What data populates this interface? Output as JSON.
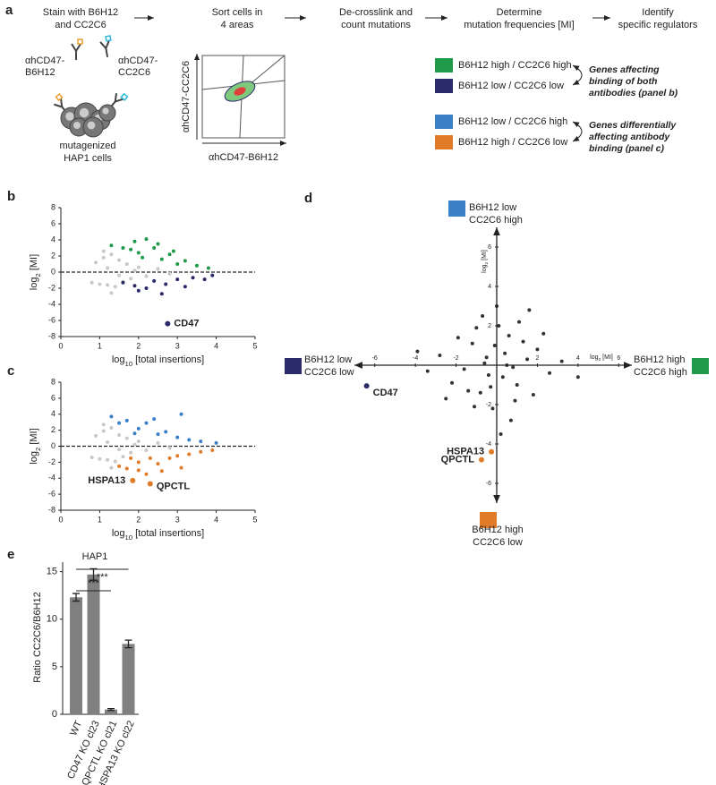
{
  "panel_a": {
    "label": "a",
    "steps": [
      [
        "Stain with B6H12",
        "and CC2C6"
      ],
      [
        "Sort cells in",
        "4 areas"
      ],
      [
        "De-crosslink and",
        "count mutations"
      ],
      [
        "Determine",
        "mutation frequencies [MI]"
      ],
      [
        "Identify",
        "specific regulators"
      ]
    ],
    "antibody_1": [
      "αhCD47-",
      "B6H12"
    ],
    "antibody_2": [
      "αhCD47-",
      "CC2C6"
    ],
    "cells": [
      "mutagenized",
      "HAP1 cells"
    ],
    "facs_ylabel": "αhCD47-CC2C6",
    "facs_xlabel": "αhCD47-B6H12",
    "legend": [
      {
        "name": "B6H12 high / CC2C6 high",
        "color": "#1f9a4a"
      },
      {
        "name": "B6H12 low / CC2C6 low",
        "color": "#2b2a6b"
      },
      {
        "name": "B6H12 low / CC2C6 high",
        "color": "#3b7fc8"
      },
      {
        "name": "B6H12 high / CC2C6 low",
        "color": "#e07b28"
      }
    ],
    "notes": [
      [
        "Genes affecting",
        "binding of both",
        "antibodies (panel b)"
      ],
      [
        "Genes differentially",
        "affecting antibody",
        "binding (panel c)"
      ]
    ]
  },
  "chart_data": [
    {
      "type": "scatter",
      "panel": "b",
      "xlim": [
        0,
        5
      ],
      "ylim": [
        -8,
        8
      ],
      "xticks": [
        0,
        1,
        2,
        3,
        4,
        5
      ],
      "yticks": [
        -8,
        -6,
        -4,
        -2,
        0,
        2,
        4,
        6,
        8
      ],
      "x_label": [
        "log",
        "10",
        " [total insertions]"
      ],
      "y_label": [
        "log",
        "2",
        " [MI]"
      ],
      "series": [
        {
          "color": "#c8c8c8",
          "x": [
            0.8,
            0.9,
            1.0,
            1.1,
            1.2,
            1.3,
            1.4,
            1.5,
            1.6,
            1.7,
            1.8,
            2.0,
            2.2,
            2.5,
            1.2,
            1.5,
            1.9,
            2.8,
            1.3,
            1.1
          ],
          "values": [
            -1.3,
            1.2,
            -1.5,
            1.8,
            -1.6,
            2.2,
            -1.8,
            1.5,
            -1.2,
            1.0,
            -0.8,
            0.6,
            -0.5,
            0.4,
            0.5,
            -0.4,
            0.2,
            -0.2,
            -2.6,
            2.6
          ]
        },
        {
          "color": "#1f9a4a",
          "x": [
            1.3,
            1.6,
            1.9,
            2.0,
            2.2,
            2.4,
            2.1,
            2.6,
            2.8,
            3.0,
            3.2,
            3.5,
            3.8,
            2.5,
            1.8,
            2.9
          ],
          "values": [
            3.3,
            3.0,
            3.8,
            2.4,
            4.1,
            3.0,
            1.8,
            1.6,
            2.2,
            1.0,
            1.4,
            0.8,
            0.5,
            3.5,
            2.8,
            2.6
          ]
        },
        {
          "color": "#2b2a6b",
          "x": [
            1.6,
            1.9,
            2.2,
            2.4,
            2.7,
            3.0,
            3.2,
            3.4,
            3.7,
            2.6,
            2.0,
            3.9
          ],
          "values": [
            -1.3,
            -1.7,
            -2.0,
            -1.1,
            -1.5,
            -0.9,
            -1.8,
            -0.7,
            -0.9,
            -2.7,
            -2.3,
            -0.4
          ]
        }
      ],
      "annotations": [
        {
          "text": "CD47",
          "x": 2.75,
          "y": -6.4,
          "color": "#2b2a6b"
        }
      ]
    },
    {
      "type": "scatter",
      "panel": "c",
      "xlim": [
        0,
        5
      ],
      "ylim": [
        -8,
        8
      ],
      "xticks": [
        0,
        1,
        2,
        3,
        4,
        5
      ],
      "yticks": [
        -8,
        -6,
        -4,
        -2,
        0,
        2,
        4,
        6,
        8
      ],
      "x_label": [
        "log",
        "10",
        " [total insertions]"
      ],
      "y_label": [
        "log",
        "2",
        " [MI]"
      ],
      "series": [
        {
          "color": "#c8c8c8",
          "x": [
            0.8,
            0.9,
            1.0,
            1.1,
            1.2,
            1.3,
            1.4,
            1.5,
            1.6,
            1.7,
            1.8,
            2.0,
            2.2,
            2.5,
            1.2,
            1.5,
            1.9,
            2.8,
            1.3,
            1.1
          ],
          "values": [
            -1.4,
            1.3,
            -1.6,
            1.9,
            -1.7,
            2.3,
            -1.9,
            1.4,
            -1.3,
            1.0,
            -0.8,
            0.6,
            -0.5,
            0.4,
            0.5,
            -0.4,
            0.2,
            -0.2,
            -2.7,
            2.7
          ]
        },
        {
          "color": "#3b7fc8",
          "x": [
            1.3,
            1.5,
            1.7,
            2.0,
            2.2,
            2.5,
            2.7,
            3.0,
            3.3,
            3.6,
            4.0,
            2.4,
            3.1,
            1.9
          ],
          "values": [
            3.7,
            2.9,
            3.2,
            2.2,
            2.9,
            1.5,
            1.8,
            1.1,
            0.8,
            0.6,
            0.4,
            3.4,
            4.0,
            1.6
          ]
        },
        {
          "color": "#e07b28",
          "x": [
            1.5,
            1.7,
            2.0,
            2.2,
            2.5,
            2.8,
            3.0,
            3.3,
            3.6,
            2.3,
            1.8,
            2.6,
            3.1,
            3.9,
            2.0
          ],
          "values": [
            -2.5,
            -2.8,
            -2.0,
            -3.5,
            -2.2,
            -1.5,
            -1.2,
            -1.0,
            -0.7,
            -1.5,
            -1.5,
            -3.1,
            -2.7,
            -0.5,
            -3.0
          ]
        }
      ],
      "annotations": [
        {
          "text": "HSPA13",
          "x": 1.85,
          "y": -4.3,
          "color": "#e07b28"
        },
        {
          "text": "QPCTL",
          "x": 2.3,
          "y": -4.7,
          "color": "#e07b28"
        }
      ]
    },
    {
      "type": "quadrant",
      "panel": "d",
      "xlim": [
        -7,
        7
      ],
      "ylim": [
        -7,
        7
      ],
      "xticks": [
        -6,
        -4,
        -2,
        2,
        4,
        6
      ],
      "yticks": [
        -6,
        -4,
        -2,
        2,
        4,
        6
      ],
      "x_label": [
        "log",
        "2",
        " [MI]"
      ],
      "y_label": [
        "log",
        "2",
        " [MI]"
      ],
      "series": [
        {
          "color": "#333333",
          "x": [
            -0.5,
            0.3,
            -1.2,
            1.0,
            0.6,
            -0.8,
            1.5,
            -1.6,
            0.1,
            -0.2,
            2.0,
            -2.2,
            0.9,
            -1.0,
            0.4,
            -0.4,
            1.3,
            -1.4,
            2.6,
            -2.8,
            0.0,
            0.7,
            -0.7,
            1.8,
            -1.9,
            3.2,
            -3.4,
            0.2,
            -0.1,
            1.1,
            -1.1,
            0.5,
            -0.6,
            2.3,
            -2.5,
            4.0,
            -3.9,
            0.8,
            -0.3,
            1.6
          ],
          "values": [
            0.4,
            -0.6,
            1.1,
            -1.0,
            1.5,
            -1.4,
            0.3,
            -0.2,
            2.0,
            -2.2,
            0.8,
            -0.9,
            -1.8,
            1.9,
            0.6,
            -0.5,
            1.2,
            -1.3,
            -0.4,
            0.5,
            3.0,
            -2.8,
            2.5,
            -1.5,
            1.4,
            0.2,
            -0.3,
            -3.5,
            1.0,
            2.2,
            -2.1,
            0.0,
            0.1,
            1.6,
            -1.7,
            -0.6,
            0.7,
            -0.1,
            -1.1,
            2.8
          ]
        }
      ],
      "annotations": [
        {
          "text": "CD47",
          "x": -6.4,
          "y": -1.05,
          "color": "#2b2a6b"
        },
        {
          "text": "HSPA13",
          "x": -0.26,
          "y": -4.4,
          "color": "#e07b28"
        },
        {
          "text": "QPCTL",
          "x": -0.75,
          "y": -4.8,
          "color": "#e07b28"
        }
      ],
      "quadrant_labels": [
        {
          "lines": [
            "B6H12 low",
            "CC2C6 high"
          ],
          "color": "#3b7fc8",
          "position": "top"
        },
        {
          "lines": [
            "B6H12 high",
            "CC2C6 low"
          ],
          "color": "#e07b28",
          "position": "bottom"
        },
        {
          "lines": [
            "B6H12 low",
            "CC2C6 low"
          ],
          "color": "#2b2a6b",
          "position": "left"
        },
        {
          "lines": [
            "B6H12 high",
            "CC2C6 high"
          ],
          "color": "#1f9a4a",
          "position": "right"
        }
      ]
    },
    {
      "type": "bar",
      "panel": "e",
      "title": "HAP1",
      "categories": [
        "WT",
        "CD47 KO cl23",
        "QPCTL KO cl21",
        "HSPA13 KO cl22"
      ],
      "values": [
        12.3,
        14.7,
        0.5,
        7.4
      ],
      "errors": [
        0.4,
        0.6,
        0.1,
        0.4
      ],
      "color": "#808080",
      "ylim": [
        0,
        16
      ],
      "yticks": [
        0,
        5,
        10,
        15
      ],
      "y_label": "Ratio CC2C6/B6H12",
      "significance": [
        "***",
        "***"
      ]
    }
  ]
}
